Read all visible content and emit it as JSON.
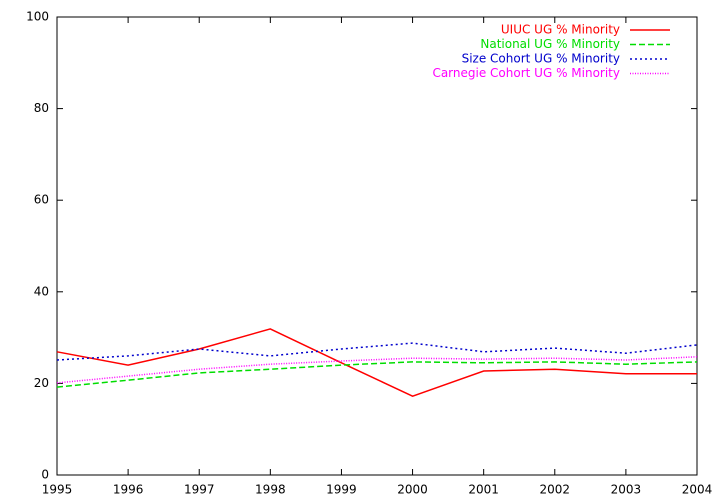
{
  "chart_data": {
    "type": "line",
    "x": [
      1995,
      1996,
      1997,
      1998,
      1999,
      2000,
      2001,
      2002,
      2003,
      2004
    ],
    "xlim": [
      1995,
      2004
    ],
    "xticks": [
      1995,
      1996,
      1997,
      1998,
      1999,
      2000,
      2001,
      2002,
      2003,
      2004
    ],
    "ylim": [
      0,
      100
    ],
    "yticks": [
      0,
      20,
      40,
      60,
      80,
      100
    ],
    "legend": "top-right",
    "series": [
      {
        "name": "UIUC UG % Minority",
        "color": "#ff0000",
        "dash": "solid",
        "values": [
          26.9,
          24.0,
          27.5,
          31.9,
          24.5,
          17.2,
          22.7,
          23.1,
          22.1,
          22.1
        ]
      },
      {
        "name": "National UG % Minority",
        "color": "#00dd00",
        "dash": "dashed",
        "values": [
          19.2,
          20.7,
          22.3,
          23.1,
          24.0,
          24.7,
          24.5,
          24.7,
          24.2,
          24.7
        ]
      },
      {
        "name": "Size Cohort UG % Minority",
        "color": "#0000cc",
        "dash": "dotted",
        "values": [
          25.1,
          26.0,
          27.5,
          26.0,
          27.5,
          28.8,
          26.9,
          27.7,
          26.6,
          28.4
        ]
      },
      {
        "name": "Carnegie Cohort UG % Minority",
        "color": "#ff00ff",
        "dash": "fine",
        "values": [
          20.1,
          21.6,
          23.1,
          24.2,
          24.9,
          25.5,
          25.3,
          25.5,
          25.1,
          25.8
        ]
      }
    ]
  }
}
